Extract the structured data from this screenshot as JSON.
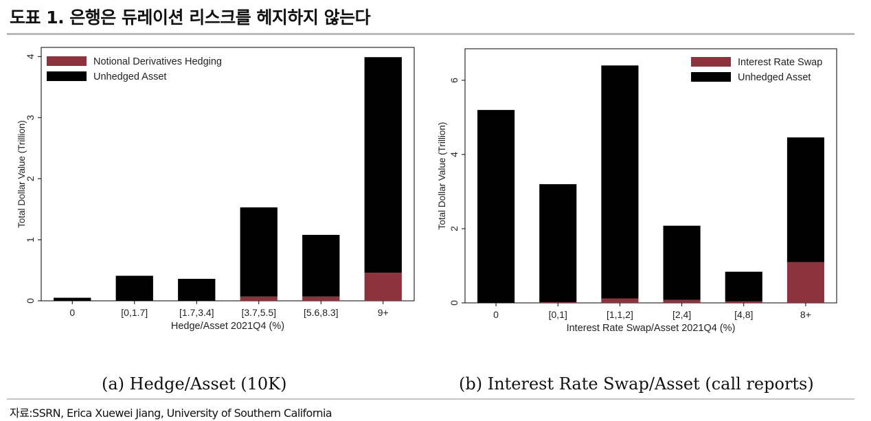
{
  "figure_title": "도표 1. 은행은 듀레이션 리스크를 헤지하지 않는다",
  "source": "자료:SSRN, Erica Xuewei Jiang, University of Southern California",
  "colors": {
    "hedged": "#8c333d",
    "unhedged": "#000000",
    "rule": "#b8b8b8"
  },
  "chart_data": [
    {
      "type": "bar",
      "stacked": true,
      "caption": "(a) Hedge/Asset (10K)",
      "categories": [
        "0",
        "[0,1.7]",
        "[1.7,3.4]",
        "[3.7,5.5]",
        "[5.6,8.3]",
        "9+"
      ],
      "series": [
        {
          "name": "Notional Derivatives Hedging",
          "values": [
            0,
            0,
            0,
            0.07,
            0.07,
            0.46
          ]
        },
        {
          "name": "Unhedged Asset",
          "values": [
            0.05,
            0.41,
            0.36,
            1.46,
            1.01,
            3.53
          ]
        }
      ],
      "xlabel": "Hedge/Asset 2021Q4 (%)",
      "ylabel": "Total Dollar Value (Trillion)",
      "ylim": [
        0,
        4.15
      ],
      "yticks": [
        "0",
        "1",
        "2",
        "3",
        "4"
      ],
      "legend_position": "top-left"
    },
    {
      "type": "bar",
      "stacked": true,
      "caption": "(b) Interest Rate Swap/Asset (call reports)",
      "categories": [
        "0",
        "[0,1]",
        "[1,1,2]",
        "[2,4]",
        "[4,8]",
        "8+"
      ],
      "series": [
        {
          "name": "Interest Rate Swap",
          "values": [
            0,
            0.02,
            0.12,
            0.08,
            0.04,
            1.1
          ]
        },
        {
          "name": "Unhedged Asset",
          "values": [
            5.2,
            3.18,
            6.28,
            2.0,
            0.8,
            3.36
          ]
        }
      ],
      "xlabel": "Interest Rate Swap/Asset 2021Q4 (%)",
      "ylabel": "Total Dollar Value (Trillion)",
      "ylim": [
        0,
        6.85
      ],
      "yticks": [
        "0",
        "2",
        "4",
        "6"
      ],
      "legend_position": "top-right"
    }
  ]
}
